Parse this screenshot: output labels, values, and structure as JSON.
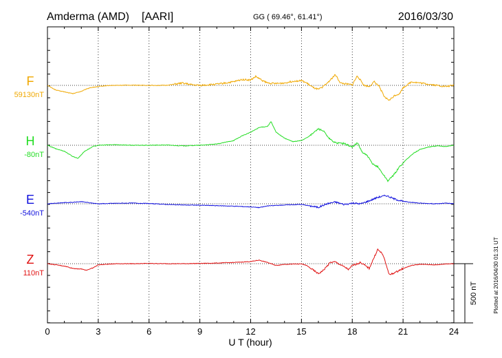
{
  "header": {
    "station": "Amderma (AMD)",
    "network": "[AARI]",
    "coords": "GG ( 69.46°,  61.41°)",
    "date": "2016/03/30"
  },
  "plotted_note": "Plotted at 2016/04/30 01:31  UT",
  "scale_bar_label": "500 nT",
  "chart_data": {
    "type": "line",
    "title": "Amderma (AMD)  [AARI]",
    "xlabel": "U T (hour)",
    "ylabel": "",
    "xlim": [
      0,
      24
    ],
    "x_ticks": [
      0,
      3,
      6,
      9,
      12,
      15,
      18,
      21,
      24
    ],
    "x_tick_labels": [
      "0",
      "3",
      "6",
      "9",
      "12",
      "15",
      "18",
      "21",
      "24"
    ],
    "vertical_grid": "dotted, every 3 hours",
    "scale_nT": 500,
    "series": [
      {
        "name": "F",
        "baseline_label": "59130nT",
        "color": "#f0a800",
        "points": [
          [
            0,
            59130
          ],
          [
            0.5,
            59090
          ],
          [
            1,
            59075
          ],
          [
            1.5,
            59060
          ],
          [
            2,
            59080
          ],
          [
            2.5,
            59110
          ],
          [
            3,
            59120
          ],
          [
            3.5,
            59128
          ],
          [
            4,
            59130
          ],
          [
            5,
            59132
          ],
          [
            6,
            59130
          ],
          [
            7,
            59130
          ],
          [
            7.5,
            59140
          ],
          [
            8,
            59150
          ],
          [
            8.5,
            59135
          ],
          [
            9,
            59130
          ],
          [
            10,
            59140
          ],
          [
            11,
            59160
          ],
          [
            11.5,
            59180
          ],
          [
            12,
            59175
          ],
          [
            12.3,
            59205
          ],
          [
            12.7,
            59170
          ],
          [
            13,
            59150
          ],
          [
            13.5,
            59145
          ],
          [
            14,
            59150
          ],
          [
            14.5,
            59165
          ],
          [
            15,
            59170
          ],
          [
            15.3,
            59150
          ],
          [
            15.7,
            59110
          ],
          [
            16,
            59095
          ],
          [
            16.3,
            59120
          ],
          [
            16.7,
            59175
          ],
          [
            17,
            59220
          ],
          [
            17.3,
            59150
          ],
          [
            17.7,
            59140
          ],
          [
            18,
            59135
          ],
          [
            18.3,
            59210
          ],
          [
            18.7,
            59130
          ],
          [
            19,
            59120
          ],
          [
            19.3,
            59160
          ],
          [
            19.6,
            59120
          ],
          [
            19.9,
            59030
          ],
          [
            20.2,
            59005
          ],
          [
            20.5,
            59045
          ],
          [
            20.8,
            59060
          ],
          [
            21,
            59110
          ],
          [
            21.5,
            59160
          ],
          [
            22,
            59150
          ],
          [
            22.5,
            59140
          ],
          [
            23,
            59130
          ],
          [
            23.5,
            59120
          ],
          [
            24,
            59130
          ]
        ]
      },
      {
        "name": "H",
        "baseline_label": "-80nT",
        "color": "#22dd22",
        "points": [
          [
            0,
            -80
          ],
          [
            0.5,
            -110
          ],
          [
            1,
            -130
          ],
          [
            1.5,
            -175
          ],
          [
            1.8,
            -190
          ],
          [
            2.2,
            -130
          ],
          [
            2.7,
            -90
          ],
          [
            3,
            -80
          ],
          [
            4,
            -75
          ],
          [
            5,
            -80
          ],
          [
            6,
            -80
          ],
          [
            7,
            -78
          ],
          [
            8,
            -85
          ],
          [
            9,
            -80
          ],
          [
            10,
            -70
          ],
          [
            11,
            -40
          ],
          [
            11.5,
            0
          ],
          [
            12,
            30
          ],
          [
            12.5,
            70
          ],
          [
            13,
            80
          ],
          [
            13.2,
            120
          ],
          [
            13.5,
            30
          ],
          [
            14,
            -20
          ],
          [
            14.5,
            -50
          ],
          [
            15,
            -40
          ],
          [
            15.5,
            0
          ],
          [
            16,
            60
          ],
          [
            16.3,
            40
          ],
          [
            16.6,
            -20
          ],
          [
            17,
            -60
          ],
          [
            17.5,
            -65
          ],
          [
            18,
            -95
          ],
          [
            18.3,
            -60
          ],
          [
            18.6,
            -140
          ],
          [
            18.9,
            -170
          ],
          [
            19.2,
            -240
          ],
          [
            19.5,
            -260
          ],
          [
            19.8,
            -320
          ],
          [
            20.1,
            -380
          ],
          [
            20.4,
            -340
          ],
          [
            20.8,
            -260
          ],
          [
            21.2,
            -200
          ],
          [
            21.6,
            -150
          ],
          [
            22,
            -115
          ],
          [
            22.5,
            -95
          ],
          [
            23,
            -85
          ],
          [
            23.5,
            -90
          ],
          [
            24,
            -80
          ]
        ]
      },
      {
        "name": "E",
        "baseline_label": "-540nT",
        "color": "#1010dd",
        "points": [
          [
            0,
            -540
          ],
          [
            0.5,
            -535
          ],
          [
            1,
            -530
          ],
          [
            1.5,
            -528
          ],
          [
            2,
            -522
          ],
          [
            2.5,
            -532
          ],
          [
            3,
            -540
          ],
          [
            4,
            -536
          ],
          [
            5,
            -534
          ],
          [
            6,
            -538
          ],
          [
            7,
            -545
          ],
          [
            8,
            -550
          ],
          [
            9,
            -552
          ],
          [
            10,
            -556
          ],
          [
            11,
            -560
          ],
          [
            12,
            -566
          ],
          [
            12.5,
            -572
          ],
          [
            13,
            -558
          ],
          [
            14,
            -550
          ],
          [
            15,
            -545
          ],
          [
            15.5,
            -558
          ],
          [
            16,
            -570
          ],
          [
            16.5,
            -540
          ],
          [
            17,
            -525
          ],
          [
            17.5,
            -545
          ],
          [
            18,
            -535
          ],
          [
            18.5,
            -540
          ],
          [
            19,
            -515
          ],
          [
            19.5,
            -485
          ],
          [
            20,
            -470
          ],
          [
            20.5,
            -500
          ],
          [
            21,
            -520
          ],
          [
            22,
            -535
          ],
          [
            23,
            -540
          ],
          [
            23.5,
            -535
          ],
          [
            24,
            -540
          ]
        ]
      },
      {
        "name": "Z",
        "baseline_label": "110nT",
        "color": "#e01010",
        "points": [
          [
            0,
            110
          ],
          [
            0.5,
            100
          ],
          [
            1,
            90
          ],
          [
            1.5,
            70
          ],
          [
            2,
            65
          ],
          [
            2.3,
            55
          ],
          [
            2.7,
            75
          ],
          [
            3,
            100
          ],
          [
            4,
            110
          ],
          [
            5,
            110
          ],
          [
            6,
            112
          ],
          [
            7,
            110
          ],
          [
            8,
            110
          ],
          [
            9,
            112
          ],
          [
            10,
            115
          ],
          [
            11,
            120
          ],
          [
            12,
            128
          ],
          [
            12.5,
            140
          ],
          [
            13,
            120
          ],
          [
            13.5,
            95
          ],
          [
            14,
            105
          ],
          [
            15,
            108
          ],
          [
            15.3,
            95
          ],
          [
            15.7,
            55
          ],
          [
            16,
            25
          ],
          [
            16.3,
            55
          ],
          [
            16.7,
            120
          ],
          [
            17,
            125
          ],
          [
            17.5,
            85
          ],
          [
            17.8,
            60
          ],
          [
            18,
            95
          ],
          [
            18.5,
            120
          ],
          [
            19,
            70
          ],
          [
            19.5,
            230
          ],
          [
            19.8,
            190
          ],
          [
            20,
            100
          ],
          [
            20.2,
            15
          ],
          [
            20.6,
            40
          ],
          [
            21,
            70
          ],
          [
            21.5,
            95
          ],
          [
            22,
            105
          ],
          [
            22.5,
            102
          ],
          [
            23,
            100
          ],
          [
            23.5,
            108
          ],
          [
            24,
            110
          ]
        ]
      }
    ]
  }
}
